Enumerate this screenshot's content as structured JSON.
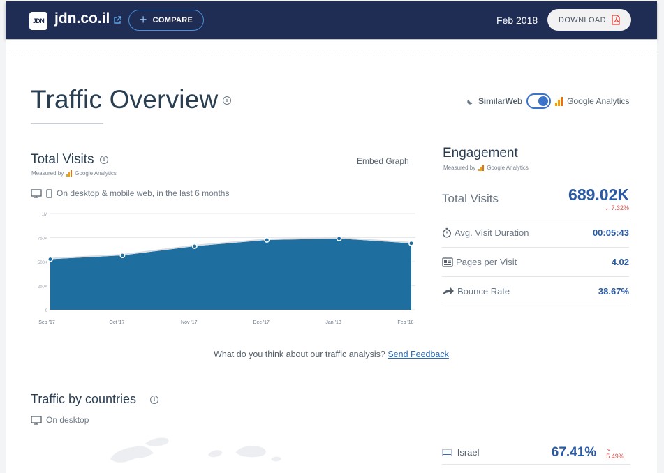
{
  "header": {
    "logo_text": "JDN",
    "site": "jdn.co.il",
    "compare_label": "COMPARE",
    "date": "Feb 2018",
    "download_label": "DOWNLOAD"
  },
  "overview": {
    "title": "Traffic Overview",
    "source_similarweb": "SimilarWeb",
    "source_ga": "Google Analytics",
    "source_selected": "Google Analytics"
  },
  "total_visits": {
    "title": "Total Visits",
    "measured_by": "Measured by",
    "measured_source": "Google Analytics",
    "embed_label": "Embed Graph",
    "device_note": "On desktop & mobile web, in the last 6 months"
  },
  "chart_data": {
    "type": "area",
    "x": [
      "Sep '17",
      "Oct '17",
      "Nov '17",
      "Dec '17",
      "Jan '18",
      "Feb '18"
    ],
    "series": [
      {
        "values": [
          525000,
          565000,
          660000,
          725000,
          740000,
          690000
        ]
      }
    ],
    "y_ticks": [
      "0",
      "250K",
      "500K",
      "750K",
      "1M"
    ],
    "ylim": [
      0,
      1000000
    ],
    "grid": true,
    "color": "#1e6fa0"
  },
  "engagement": {
    "title": "Engagement",
    "measured_by": "Measured by",
    "measured_source": "Google Analytics",
    "total_label": "Total Visits",
    "total_value": "689.02K",
    "total_change": "7.32%",
    "metrics": [
      {
        "label": "Avg. Visit Duration",
        "value": "00:05:43",
        "icon": "stopwatch-icon"
      },
      {
        "label": "Pages per Visit",
        "value": "4.02",
        "icon": "pages-icon"
      },
      {
        "label": "Bounce Rate",
        "value": "38.67%",
        "icon": "bounce-arrow-icon"
      }
    ]
  },
  "feedback": {
    "question": "What do you think about our traffic analysis?",
    "link": "Send Feedback"
  },
  "countries": {
    "title": "Traffic by countries",
    "device_note": "On desktop",
    "rows": [
      {
        "name": "Israel",
        "share": "67.41%",
        "change": "5.49%"
      }
    ]
  },
  "colors": {
    "header_bg": "#1f2d55",
    "accent_blue": "#2a5aa3",
    "chart_fill": "#1e6fa0",
    "negative_red": "#d8504b"
  }
}
